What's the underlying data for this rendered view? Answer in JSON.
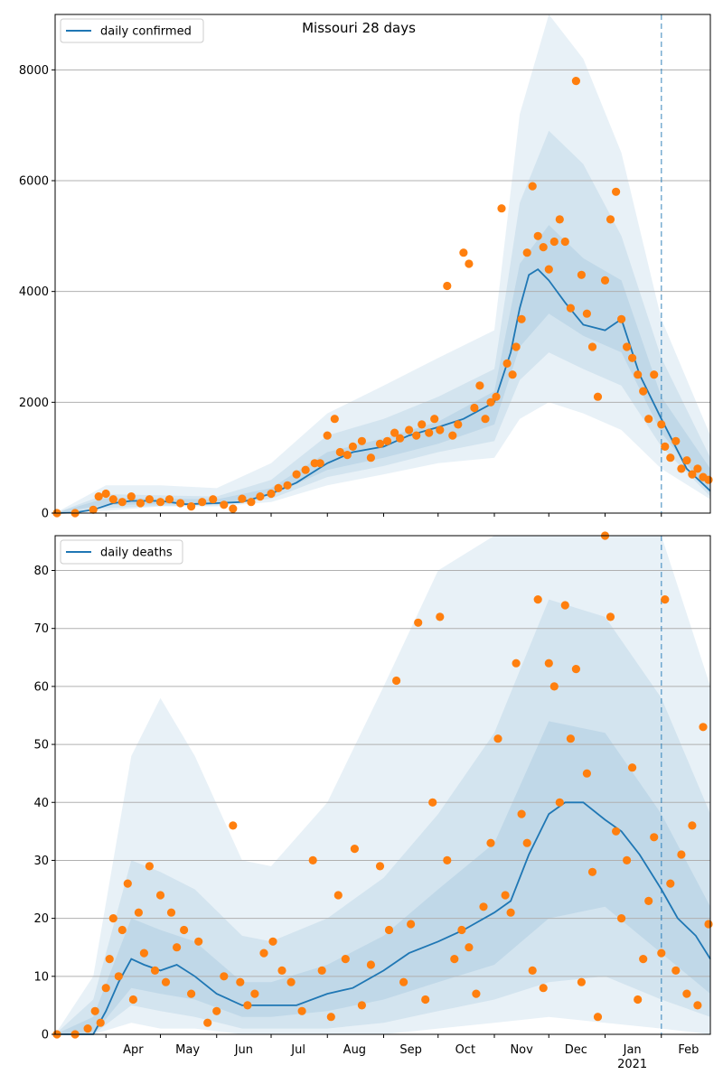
{
  "figure": {
    "title": "Missouri 28 days",
    "colors": {
      "line": "#1f77b4",
      "points": "#ff7f0e",
      "band": "#1f77b4",
      "grid": "#b0b0b0",
      "vline": "#1f77b4"
    }
  },
  "x_axis": {
    "month_labels": [
      "Apr",
      "May",
      "Jun",
      "Jul",
      "Aug",
      "Sep",
      "Oct",
      "Nov",
      "Dec",
      "Jan",
      "Feb"
    ],
    "year_label": "2021"
  },
  "chart_data": [
    {
      "type": "line",
      "title": "Missouri 28 days",
      "legend": "daily confirmed",
      "legend_position": "top-left",
      "x_range": [
        "2020-03-04",
        "2021-02-28"
      ],
      "ylim": [
        0,
        9000
      ],
      "yticks": [
        0,
        2000,
        4000,
        6000,
        8000
      ],
      "grid": "y",
      "marker_date": "2021-02-01",
      "line": {
        "x": [
          "2020-03-04",
          "2020-03-15",
          "2020-03-25",
          "2020-04-05",
          "2020-04-15",
          "2020-05-01",
          "2020-05-15",
          "2020-06-01",
          "2020-06-15",
          "2020-07-01",
          "2020-07-15",
          "2020-08-01",
          "2020-08-15",
          "2020-09-01",
          "2020-09-15",
          "2020-10-01",
          "2020-10-15",
          "2020-11-01",
          "2020-11-10",
          "2020-11-15",
          "2020-11-20",
          "2020-11-25",
          "2020-12-01",
          "2020-12-10",
          "2020-12-20",
          "2021-01-01",
          "2021-01-10",
          "2021-01-20",
          "2021-02-01",
          "2021-02-15",
          "2021-02-28"
        ],
        "y": [
          0,
          10,
          60,
          180,
          220,
          220,
          160,
          180,
          200,
          350,
          550,
          900,
          1100,
          1200,
          1400,
          1550,
          1700,
          2000,
          2900,
          3700,
          4300,
          4400,
          4200,
          3800,
          3400,
          3300,
          3500,
          2500,
          1700,
          800,
          400
        ]
      },
      "bands": [
        {
          "x": [
            "2020-03-04",
            "2020-04-01",
            "2020-05-01",
            "2020-06-01",
            "2020-07-01",
            "2020-08-01",
            "2020-09-01",
            "2020-10-01",
            "2020-11-01",
            "2020-11-15",
            "2020-12-01",
            "2020-12-20",
            "2021-01-10",
            "2021-02-01",
            "2021-02-28"
          ],
          "lower": [
            0,
            40,
            120,
            120,
            200,
            500,
            700,
            900,
            1000,
            1700,
            2000,
            1800,
            1500,
            800,
            250
          ],
          "upper": [
            0,
            500,
            500,
            450,
            900,
            1800,
            2300,
            2800,
            3300,
            7200,
            9000,
            8200,
            6500,
            3500,
            1400
          ]
        },
        {
          "x": [
            "2020-03-04",
            "2020-04-01",
            "2020-05-01",
            "2020-06-01",
            "2020-07-01",
            "2020-08-01",
            "2020-09-01",
            "2020-10-01",
            "2020-11-01",
            "2020-11-15",
            "2020-12-01",
            "2020-12-20",
            "2021-01-10",
            "2021-02-01",
            "2021-02-28"
          ],
          "lower": [
            0,
            90,
            130,
            140,
            260,
            650,
            850,
            1100,
            1300,
            2400,
            2900,
            2600,
            2300,
            1200,
            300
          ],
          "upper": [
            0,
            340,
            320,
            300,
            600,
            1400,
            1700,
            2100,
            2600,
            5600,
            6900,
            6300,
            5000,
            2800,
            1000
          ]
        },
        {
          "x": [
            "2020-03-04",
            "2020-04-01",
            "2020-05-01",
            "2020-06-01",
            "2020-07-01",
            "2020-08-01",
            "2020-09-01",
            "2020-10-01",
            "2020-11-01",
            "2020-11-15",
            "2020-12-01",
            "2020-12-20",
            "2021-01-10",
            "2021-02-01",
            "2021-02-28"
          ],
          "lower": [
            0,
            150,
            160,
            160,
            320,
            780,
            1000,
            1250,
            1600,
            3000,
            3600,
            3200,
            2900,
            1450,
            350
          ],
          "upper": [
            0,
            270,
            260,
            250,
            450,
            1100,
            1350,
            1650,
            2200,
            4500,
            5200,
            4600,
            4200,
            2100,
            800
          ]
        }
      ],
      "points": {
        "x": [
          "2020-03-05",
          "2020-03-15",
          "2020-03-25",
          "2020-03-28",
          "2020-04-01",
          "2020-04-05",
          "2020-04-10",
          "2020-04-15",
          "2020-04-20",
          "2020-04-25",
          "2020-05-01",
          "2020-05-06",
          "2020-05-12",
          "2020-05-18",
          "2020-05-24",
          "2020-05-30",
          "2020-06-05",
          "2020-06-10",
          "2020-06-15",
          "2020-06-20",
          "2020-06-25",
          "2020-07-01",
          "2020-07-05",
          "2020-07-10",
          "2020-07-15",
          "2020-07-20",
          "2020-07-25",
          "2020-07-28",
          "2020-08-01",
          "2020-08-05",
          "2020-08-08",
          "2020-08-12",
          "2020-08-15",
          "2020-08-20",
          "2020-08-25",
          "2020-08-30",
          "2020-09-03",
          "2020-09-07",
          "2020-09-10",
          "2020-09-15",
          "2020-09-19",
          "2020-09-22",
          "2020-09-26",
          "2020-09-29",
          "2020-10-02",
          "2020-10-06",
          "2020-10-09",
          "2020-10-12",
          "2020-10-15",
          "2020-10-18",
          "2020-10-21",
          "2020-10-24",
          "2020-10-27",
          "2020-10-30",
          "2020-11-02",
          "2020-11-05",
          "2020-11-08",
          "2020-11-11",
          "2020-11-13",
          "2020-11-16",
          "2020-11-19",
          "2020-11-22",
          "2020-11-25",
          "2020-11-28",
          "2020-12-01",
          "2020-12-04",
          "2020-12-07",
          "2020-12-10",
          "2020-12-13",
          "2020-12-16",
          "2020-12-19",
          "2020-12-22",
          "2020-12-25",
          "2020-12-28",
          "2021-01-01",
          "2021-01-04",
          "2021-01-07",
          "2021-01-10",
          "2021-01-13",
          "2021-01-16",
          "2021-01-19",
          "2021-01-22",
          "2021-01-25",
          "2021-01-28",
          "2021-02-01",
          "2021-02-03",
          "2021-02-06",
          "2021-02-09",
          "2021-02-12",
          "2021-02-15",
          "2021-02-18",
          "2021-02-21",
          "2021-02-24",
          "2021-02-27"
        ],
        "y": [
          0,
          0,
          60,
          300,
          350,
          250,
          200,
          300,
          180,
          250,
          200,
          250,
          180,
          120,
          200,
          250,
          150,
          80,
          260,
          200,
          300,
          350,
          450,
          500,
          700,
          780,
          900,
          900,
          1400,
          1700,
          1100,
          1050,
          1200,
          1300,
          1000,
          1250,
          1300,
          1450,
          1350,
          1500,
          1400,
          1600,
          1450,
          1700,
          1500,
          4100,
          1400,
          1600,
          4700,
          4500,
          1900,
          2300,
          1700,
          2000,
          2100,
          5500,
          2700,
          2500,
          3000,
          3500,
          4700,
          5900,
          5000,
          4800,
          4400,
          4900,
          5300,
          4900,
          3700,
          7800,
          4300,
          3600,
          3000,
          2100,
          4200,
          5300,
          5800,
          3500,
          3000,
          2800,
          2500,
          2200,
          1700,
          2500,
          1600,
          1200,
          1000,
          1300,
          800,
          950,
          700,
          800,
          650,
          600
        ]
      }
    },
    {
      "type": "line",
      "legend": "daily deaths",
      "legend_position": "top-left",
      "x_range": [
        "2020-03-04",
        "2021-02-28"
      ],
      "ylim": [
        0,
        86
      ],
      "yticks": [
        0,
        10,
        20,
        30,
        40,
        50,
        60,
        70,
        80
      ],
      "grid": "y",
      "marker_date": "2021-02-01",
      "line": {
        "x": [
          "2020-03-04",
          "2020-03-15",
          "2020-03-25",
          "2020-04-01",
          "2020-04-08",
          "2020-04-15",
          "2020-04-22",
          "2020-05-01",
          "2020-05-10",
          "2020-05-20",
          "2020-06-01",
          "2020-06-15",
          "2020-07-01",
          "2020-07-15",
          "2020-08-01",
          "2020-08-15",
          "2020-09-01",
          "2020-09-15",
          "2020-10-01",
          "2020-10-15",
          "2020-11-01",
          "2020-11-10",
          "2020-11-20",
          "2020-12-01",
          "2020-12-10",
          "2020-12-20",
          "2021-01-01",
          "2021-01-10",
          "2021-01-20",
          "2021-02-01",
          "2021-02-10",
          "2021-02-20",
          "2021-02-28"
        ],
        "y": [
          0,
          0,
          0,
          4,
          9,
          13,
          12,
          11,
          12,
          10,
          7,
          5,
          5,
          5,
          7,
          8,
          11,
          14,
          16,
          18,
          21,
          23,
          31,
          38,
          40,
          40,
          37,
          35,
          31,
          25,
          20,
          17,
          13
        ]
      },
      "bands": [
        {
          "x": [
            "2020-03-04",
            "2020-03-25",
            "2020-04-15",
            "2020-05-01",
            "2020-05-20",
            "2020-06-15",
            "2020-07-01",
            "2020-08-01",
            "2020-09-01",
            "2020-10-01",
            "2020-11-01",
            "2020-12-01",
            "2021-01-01",
            "2021-02-01",
            "2021-02-28"
          ],
          "lower": [
            0,
            0,
            2,
            1,
            1,
            0,
            0,
            0,
            0,
            1,
            2,
            3,
            2,
            1,
            0
          ],
          "upper": [
            0,
            10,
            48,
            58,
            48,
            30,
            29,
            40,
            60,
            80,
            86,
            86,
            86,
            86,
            60
          ]
        },
        {
          "x": [
            "2020-03-04",
            "2020-03-25",
            "2020-04-15",
            "2020-05-01",
            "2020-05-20",
            "2020-06-15",
            "2020-07-01",
            "2020-08-01",
            "2020-09-01",
            "2020-10-01",
            "2020-11-01",
            "2020-12-01",
            "2021-01-01",
            "2021-02-01",
            "2021-02-28"
          ],
          "lower": [
            0,
            0,
            5,
            4,
            3,
            1,
            1,
            1,
            2,
            4,
            6,
            9,
            10,
            6,
            3
          ],
          "upper": [
            0,
            6,
            30,
            28,
            25,
            17,
            16,
            20,
            27,
            38,
            52,
            75,
            72,
            58,
            38
          ]
        },
        {
          "x": [
            "2020-03-04",
            "2020-03-25",
            "2020-04-15",
            "2020-05-01",
            "2020-05-20",
            "2020-06-15",
            "2020-07-01",
            "2020-08-01",
            "2020-09-01",
            "2020-10-01",
            "2020-11-01",
            "2020-12-01",
            "2021-01-01",
            "2021-02-01",
            "2021-02-28"
          ],
          "lower": [
            0,
            0,
            8,
            7,
            6,
            3,
            3,
            4,
            6,
            9,
            12,
            20,
            22,
            14,
            7
          ],
          "upper": [
            0,
            3,
            20,
            18,
            16,
            9,
            9,
            12,
            17,
            25,
            33,
            54,
            52,
            38,
            22
          ]
        }
      ],
      "points": {
        "x": [
          "2020-03-05",
          "2020-03-15",
          "2020-03-22",
          "2020-03-26",
          "2020-03-29",
          "2020-04-01",
          "2020-04-03",
          "2020-04-05",
          "2020-04-08",
          "2020-04-10",
          "2020-04-13",
          "2020-04-16",
          "2020-04-19",
          "2020-04-22",
          "2020-04-25",
          "2020-04-28",
          "2020-05-01",
          "2020-05-04",
          "2020-05-07",
          "2020-05-10",
          "2020-05-14",
          "2020-05-18",
          "2020-05-22",
          "2020-05-27",
          "2020-06-01",
          "2020-06-05",
          "2020-06-10",
          "2020-06-14",
          "2020-06-18",
          "2020-06-22",
          "2020-06-27",
          "2020-07-02",
          "2020-07-07",
          "2020-07-12",
          "2020-07-18",
          "2020-07-24",
          "2020-07-29",
          "2020-08-03",
          "2020-08-07",
          "2020-08-11",
          "2020-08-16",
          "2020-08-20",
          "2020-08-25",
          "2020-08-30",
          "2020-09-04",
          "2020-09-08",
          "2020-09-12",
          "2020-09-16",
          "2020-09-20",
          "2020-09-24",
          "2020-09-28",
          "2020-10-02",
          "2020-10-06",
          "2020-10-10",
          "2020-10-14",
          "2020-10-18",
          "2020-10-22",
          "2020-10-26",
          "2020-10-30",
          "2020-11-03",
          "2020-11-07",
          "2020-11-10",
          "2020-11-13",
          "2020-11-16",
          "2020-11-19",
          "2020-11-22",
          "2020-11-25",
          "2020-11-28",
          "2020-12-01",
          "2020-12-04",
          "2020-12-07",
          "2020-12-10",
          "2020-12-13",
          "2020-12-16",
          "2020-12-19",
          "2020-12-22",
          "2020-12-25",
          "2020-12-28",
          "2021-01-01",
          "2021-01-04",
          "2021-01-07",
          "2021-01-10",
          "2021-01-13",
          "2021-01-16",
          "2021-01-19",
          "2021-01-22",
          "2021-01-25",
          "2021-01-28",
          "2021-02-01",
          "2021-02-03",
          "2021-02-06",
          "2021-02-09",
          "2021-02-12",
          "2021-02-15",
          "2021-02-18",
          "2021-02-21",
          "2021-02-24",
          "2021-02-27"
        ],
        "y": [
          0,
          0,
          1,
          4,
          2,
          8,
          13,
          20,
          10,
          18,
          26,
          6,
          21,
          14,
          29,
          11,
          24,
          9,
          21,
          15,
          18,
          7,
          16,
          2,
          4,
          10,
          36,
          9,
          5,
          7,
          14,
          16,
          11,
          9,
          4,
          30,
          11,
          3,
          24,
          13,
          32,
          5,
          12,
          29,
          18,
          61,
          9,
          19,
          71,
          6,
          40,
          72,
          30,
          13,
          18,
          15,
          7,
          22,
          33,
          51,
          24,
          21,
          64,
          38,
          33,
          11,
          75,
          8,
          64,
          60,
          40,
          74,
          51,
          63,
          9,
          45,
          28,
          3,
          86,
          72,
          35,
          20,
          30,
          46,
          6,
          13,
          23,
          34,
          14,
          75,
          26,
          11,
          31,
          7,
          36,
          5,
          53,
          19
        ]
      }
    }
  ]
}
